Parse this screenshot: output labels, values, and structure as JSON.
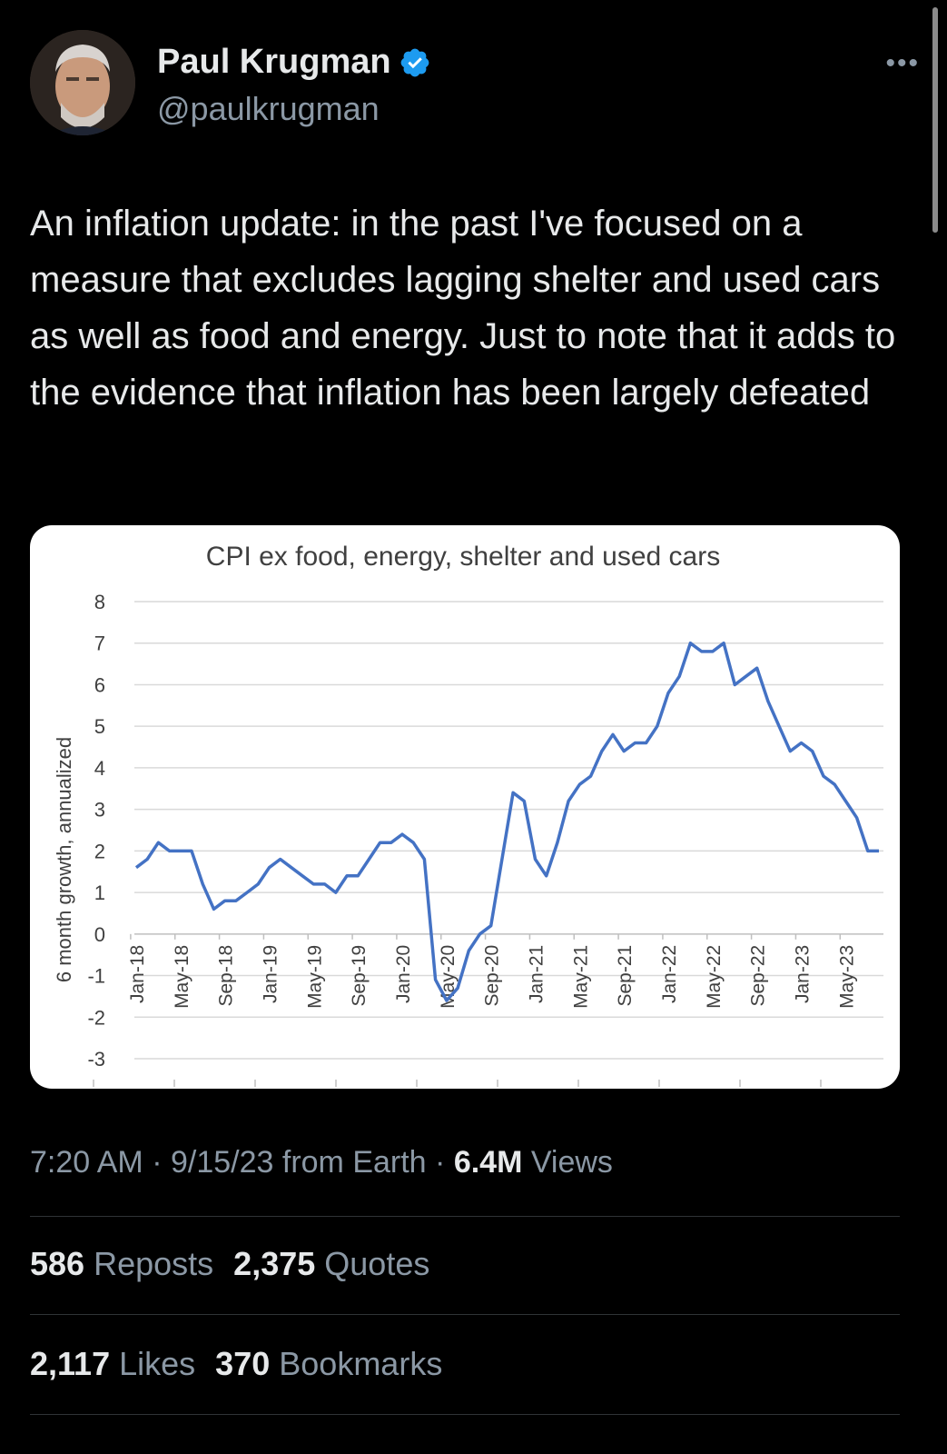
{
  "author": {
    "name": "Paul Krugman",
    "handle": "@paulkrugman",
    "verified": true,
    "badge_color": "#1d9bf0"
  },
  "more_icon": "more-horizontal-icon",
  "tweet": {
    "text": "An inflation update: in the past I've focused on a measure that excludes lagging shelter and used cars as well as food and energy. Just to note that it adds to the evidence that inflation has been largely defeated"
  },
  "chart_data": {
    "type": "line",
    "title": "CPI ex food, energy, shelter and used cars",
    "ylabel": "6 month growth, annualized",
    "xlabel": "",
    "ylim": [
      -3,
      8
    ],
    "yticks": [
      -3,
      -2,
      -1,
      0,
      1,
      2,
      3,
      4,
      5,
      6,
      7,
      8
    ],
    "grid": true,
    "line_color": "#4472c4",
    "x_tick_labels": [
      "Jan-18",
      "May-18",
      "Sep-18",
      "Jan-19",
      "May-19",
      "Sep-19",
      "Jan-20",
      "May-20",
      "Sep-20",
      "Jan-21",
      "May-21",
      "Sep-21",
      "Jan-22",
      "May-22",
      "Sep-22",
      "Jan-23",
      "May-23"
    ],
    "series": [
      {
        "x": [
          "Jan-18",
          "Feb-18",
          "Mar-18",
          "Apr-18",
          "May-18",
          "Jun-18",
          "Jul-18",
          "Aug-18",
          "Sep-18",
          "Oct-18",
          "Nov-18",
          "Dec-18",
          "Jan-19",
          "Feb-19",
          "Mar-19",
          "Apr-19",
          "May-19",
          "Jun-19",
          "Jul-19",
          "Aug-19",
          "Sep-19",
          "Oct-19",
          "Nov-19",
          "Dec-19",
          "Jan-20",
          "Feb-20",
          "Mar-20",
          "Apr-20",
          "May-20",
          "Jun-20",
          "Jul-20",
          "Aug-20",
          "Sep-20",
          "Oct-20",
          "Nov-20",
          "Dec-20",
          "Jan-21",
          "Feb-21",
          "Mar-21",
          "Apr-21",
          "May-21",
          "Jun-21",
          "Jul-21",
          "Aug-21",
          "Sep-21",
          "Oct-21",
          "Nov-21",
          "Dec-21",
          "Jan-22",
          "Feb-22",
          "Mar-22",
          "Apr-22",
          "May-22",
          "Jun-22",
          "Jul-22",
          "Aug-22",
          "Sep-22",
          "Oct-22",
          "Nov-22",
          "Dec-22",
          "Jan-23",
          "Feb-23",
          "Mar-23",
          "Apr-23",
          "May-23",
          "Jun-23",
          "Jul-23",
          "Aug-23"
        ],
        "values": [
          1.6,
          1.8,
          2.2,
          2.0,
          2.0,
          2.0,
          1.2,
          0.6,
          0.8,
          0.8,
          1.0,
          1.2,
          1.6,
          1.8,
          1.6,
          1.4,
          1.2,
          1.2,
          1.0,
          1.4,
          1.4,
          1.8,
          2.2,
          2.2,
          2.4,
          2.2,
          1.8,
          -1.1,
          -1.6,
          -1.3,
          -0.4,
          0.0,
          0.2,
          1.8,
          3.4,
          3.2,
          1.8,
          1.4,
          2.2,
          3.2,
          3.6,
          3.8,
          4.4,
          4.8,
          4.4,
          4.6,
          4.6,
          5.0,
          5.8,
          6.2,
          7.0,
          6.8,
          6.8,
          7.0,
          6.0,
          6.2,
          6.4,
          5.6,
          5.0,
          4.4,
          4.6,
          4.4,
          3.8,
          3.6,
          3.2,
          2.8,
          2.0,
          2.0
        ]
      }
    ]
  },
  "meta": {
    "time": "7:20 AM",
    "sep1": " · ",
    "date": "9/15/23",
    "source": " from Earth",
    "sep2": " · ",
    "views_count": "6.4M",
    "views_label": " Views"
  },
  "stats": {
    "reposts_count": "586",
    "reposts_label": "Reposts",
    "quotes_count": "2,375",
    "quotes_label": "Quotes",
    "likes_count": "2,117",
    "likes_label": "Likes",
    "bookmarks_count": "370",
    "bookmarks_label": "Bookmarks"
  }
}
